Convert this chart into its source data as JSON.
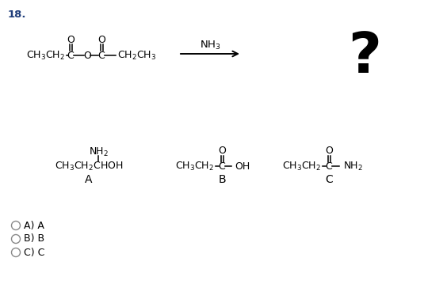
{
  "title_num": "18.",
  "title_color": "#1f3d7a",
  "background_color": "#ffffff",
  "arrow_label": "NH₃",
  "question_mark": "?",
  "option_A": "A) A",
  "option_B": "B) B",
  "option_C": "C) C"
}
